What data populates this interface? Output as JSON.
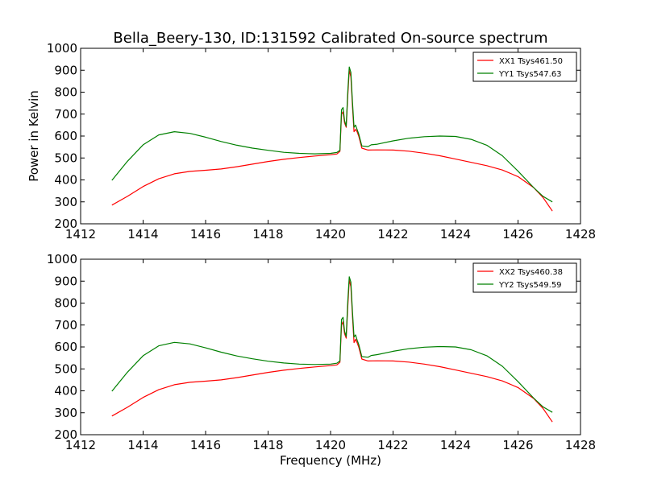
{
  "figure": {
    "title": "Bella_Beery-130, ID:131592 Calibrated On-source spectrum",
    "xlabel": "Frequency (MHz)",
    "ylabel": "Power in Kelvin"
  },
  "chart_data": [
    {
      "type": "line",
      "title": "Bella_Beery-130, ID:131592 Calibrated On-source spectrum",
      "xlabel": "",
      "ylabel": "Power in Kelvin",
      "xlim": [
        1412,
        1428
      ],
      "ylim": [
        200,
        1000
      ],
      "xticks": [
        1412,
        1414,
        1416,
        1418,
        1420,
        1422,
        1424,
        1426,
        1428
      ],
      "yticks": [
        200,
        300,
        400,
        500,
        600,
        700,
        800,
        900,
        1000
      ],
      "grid": false,
      "legend_position": "top-right",
      "series": [
        {
          "name": "XX1 Tsys461.50",
          "color": "#ff0000",
          "points": [
            [
              1413.0,
              285
            ],
            [
              1413.5,
              325
            ],
            [
              1414.0,
              370
            ],
            [
              1414.5,
              405
            ],
            [
              1415.0,
              428
            ],
            [
              1415.5,
              439
            ],
            [
              1416.0,
              444
            ],
            [
              1416.5,
              450
            ],
            [
              1417.0,
              460
            ],
            [
              1417.5,
              472
            ],
            [
              1418.0,
              484
            ],
            [
              1418.5,
              494
            ],
            [
              1419.0,
              502
            ],
            [
              1419.5,
              509
            ],
            [
              1420.0,
              515
            ],
            [
              1420.2,
              518
            ],
            [
              1420.3,
              530
            ],
            [
              1420.35,
              700
            ],
            [
              1420.4,
              710
            ],
            [
              1420.45,
              660
            ],
            [
              1420.5,
              640
            ],
            [
              1420.55,
              780
            ],
            [
              1420.6,
              900
            ],
            [
              1420.65,
              870
            ],
            [
              1420.7,
              740
            ],
            [
              1420.75,
              620
            ],
            [
              1420.8,
              630
            ],
            [
              1420.85,
              620
            ],
            [
              1420.9,
              600
            ],
            [
              1421.0,
              545
            ],
            [
              1421.2,
              536
            ],
            [
              1421.5,
              537
            ],
            [
              1422.0,
              536
            ],
            [
              1422.5,
              531
            ],
            [
              1423.0,
              522
            ],
            [
              1423.5,
              510
            ],
            [
              1424.0,
              495
            ],
            [
              1424.5,
              480
            ],
            [
              1425.0,
              465
            ],
            [
              1425.5,
              445
            ],
            [
              1426.0,
              415
            ],
            [
              1426.5,
              365
            ],
            [
              1426.8,
              320
            ],
            [
              1427.1,
              258
            ]
          ]
        },
        {
          "name": "YY1 Tsys547.63",
          "color": "#008000",
          "points": [
            [
              1413.0,
              398
            ],
            [
              1413.5,
              485
            ],
            [
              1414.0,
              560
            ],
            [
              1414.5,
              605
            ],
            [
              1415.0,
              620
            ],
            [
              1415.5,
              612
            ],
            [
              1416.0,
              595
            ],
            [
              1416.5,
              575
            ],
            [
              1417.0,
              558
            ],
            [
              1417.5,
              545
            ],
            [
              1418.0,
              535
            ],
            [
              1418.5,
              526
            ],
            [
              1419.0,
              521
            ],
            [
              1419.5,
              519
            ],
            [
              1420.0,
              521
            ],
            [
              1420.2,
              525
            ],
            [
              1420.3,
              535
            ],
            [
              1420.35,
              720
            ],
            [
              1420.4,
              730
            ],
            [
              1420.45,
              670
            ],
            [
              1420.5,
              645
            ],
            [
              1420.55,
              800
            ],
            [
              1420.6,
              915
            ],
            [
              1420.65,
              890
            ],
            [
              1420.7,
              760
            ],
            [
              1420.75,
              640
            ],
            [
              1420.8,
              650
            ],
            [
              1420.85,
              630
            ],
            [
              1420.9,
              610
            ],
            [
              1421.0,
              555
            ],
            [
              1421.2,
              552
            ],
            [
              1421.3,
              560
            ],
            [
              1421.5,
              563
            ],
            [
              1422.0,
              578
            ],
            [
              1422.5,
              590
            ],
            [
              1423.0,
              597
            ],
            [
              1423.5,
              600
            ],
            [
              1424.0,
              598
            ],
            [
              1424.5,
              585
            ],
            [
              1425.0,
              558
            ],
            [
              1425.5,
              510
            ],
            [
              1426.0,
              440
            ],
            [
              1426.5,
              365
            ],
            [
              1426.8,
              325
            ],
            [
              1427.1,
              300
            ]
          ]
        }
      ]
    },
    {
      "type": "line",
      "title": "",
      "xlabel": "Frequency (MHz)",
      "ylabel": "",
      "xlim": [
        1412,
        1428
      ],
      "ylim": [
        200,
        1000
      ],
      "xticks": [
        1412,
        1414,
        1416,
        1418,
        1420,
        1422,
        1424,
        1426,
        1428
      ],
      "yticks": [
        200,
        300,
        400,
        500,
        600,
        700,
        800,
        900,
        1000
      ],
      "grid": false,
      "legend_position": "top-right",
      "series": [
        {
          "name": "XX2 Tsys460.38",
          "color": "#ff0000",
          "points": [
            [
              1413.0,
              285
            ],
            [
              1413.5,
              325
            ],
            [
              1414.0,
              370
            ],
            [
              1414.5,
              405
            ],
            [
              1415.0,
              428
            ],
            [
              1415.5,
              439
            ],
            [
              1416.0,
              444
            ],
            [
              1416.5,
              450
            ],
            [
              1417.0,
              460
            ],
            [
              1417.5,
              472
            ],
            [
              1418.0,
              484
            ],
            [
              1418.5,
              494
            ],
            [
              1419.0,
              502
            ],
            [
              1419.5,
              509
            ],
            [
              1420.0,
              515
            ],
            [
              1420.2,
              518
            ],
            [
              1420.3,
              530
            ],
            [
              1420.35,
              700
            ],
            [
              1420.4,
              715
            ],
            [
              1420.45,
              660
            ],
            [
              1420.5,
              640
            ],
            [
              1420.55,
              780
            ],
            [
              1420.6,
              905
            ],
            [
              1420.65,
              875
            ],
            [
              1420.7,
              745
            ],
            [
              1420.75,
              620
            ],
            [
              1420.8,
              635
            ],
            [
              1420.85,
              620
            ],
            [
              1420.9,
              600
            ],
            [
              1421.0,
              545
            ],
            [
              1421.2,
              536
            ],
            [
              1421.5,
              537
            ],
            [
              1422.0,
              536
            ],
            [
              1422.5,
              531
            ],
            [
              1423.0,
              522
            ],
            [
              1423.5,
              510
            ],
            [
              1424.0,
              495
            ],
            [
              1424.5,
              480
            ],
            [
              1425.0,
              465
            ],
            [
              1425.5,
              445
            ],
            [
              1426.0,
              415
            ],
            [
              1426.5,
              365
            ],
            [
              1426.8,
              320
            ],
            [
              1427.1,
              258
            ]
          ]
        },
        {
          "name": "YY2 Tsys549.59",
          "color": "#008000",
          "points": [
            [
              1413.0,
              398
            ],
            [
              1413.5,
              485
            ],
            [
              1414.0,
              560
            ],
            [
              1414.5,
              605
            ],
            [
              1415.0,
              621
            ],
            [
              1415.5,
              614
            ],
            [
              1416.0,
              596
            ],
            [
              1416.5,
              576
            ],
            [
              1417.0,
              559
            ],
            [
              1417.5,
              546
            ],
            [
              1418.0,
              535
            ],
            [
              1418.5,
              527
            ],
            [
              1419.0,
              522
            ],
            [
              1419.5,
              520
            ],
            [
              1420.0,
              522
            ],
            [
              1420.2,
              526
            ],
            [
              1420.3,
              536
            ],
            [
              1420.35,
              725
            ],
            [
              1420.4,
              735
            ],
            [
              1420.45,
              672
            ],
            [
              1420.5,
              648
            ],
            [
              1420.55,
              805
            ],
            [
              1420.6,
              920
            ],
            [
              1420.65,
              895
            ],
            [
              1420.7,
              765
            ],
            [
              1420.75,
              645
            ],
            [
              1420.8,
              655
            ],
            [
              1420.85,
              632
            ],
            [
              1420.9,
              612
            ],
            [
              1421.0,
              556
            ],
            [
              1421.2,
              553
            ],
            [
              1421.3,
              561
            ],
            [
              1421.5,
              565
            ],
            [
              1422.0,
              580
            ],
            [
              1422.5,
              592
            ],
            [
              1423.0,
              599
            ],
            [
              1423.5,
              602
            ],
            [
              1424.0,
              600
            ],
            [
              1424.5,
              587
            ],
            [
              1425.0,
              560
            ],
            [
              1425.5,
              512
            ],
            [
              1426.0,
              442
            ],
            [
              1426.5,
              367
            ],
            [
              1426.8,
              327
            ],
            [
              1427.1,
              302
            ]
          ]
        }
      ]
    }
  ]
}
